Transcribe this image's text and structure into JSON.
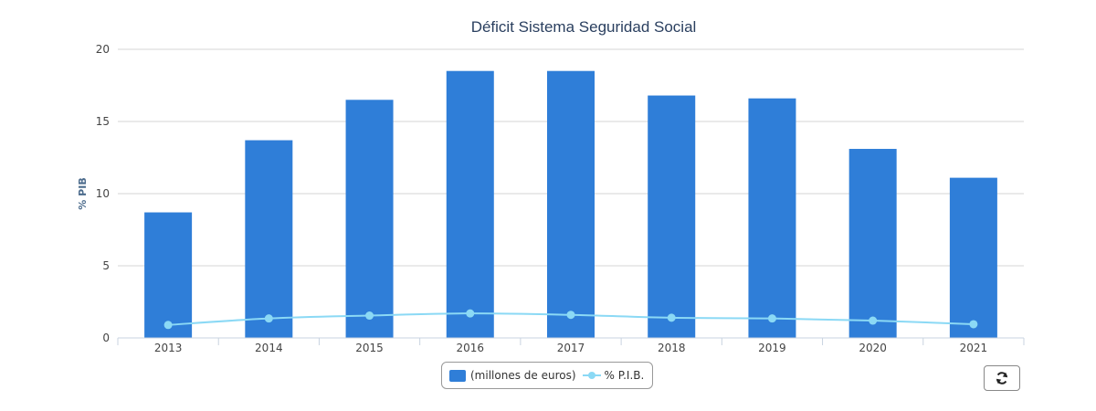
{
  "colors": {
    "bar": "#2f7ed8",
    "line": "#8bd9f5",
    "grid": "#d6d6d6",
    "axis": "#c8d3e0"
  },
  "legend": {
    "bar_label": "(millones de euros)",
    "line_label": "% P.I.B."
  },
  "refresh_button": {
    "icon": "refresh-icon"
  },
  "chart_data": {
    "type": "bar",
    "title": "Déficit Sistema Seguridad Social",
    "xlabel": "",
    "ylabel": "% PIB",
    "ylim": [
      0,
      20
    ],
    "yticks": [
      "0",
      "5",
      "10",
      "15",
      "20"
    ],
    "categories": [
      "2013",
      "2014",
      "2015",
      "2016",
      "2017",
      "2018",
      "2019",
      "2020",
      "2021"
    ],
    "grid": true,
    "legend_position": "bottom-center",
    "series": [
      {
        "name": "(millones de euros)",
        "type": "bar",
        "values": [
          8.7,
          13.7,
          16.5,
          18.5,
          18.5,
          16.8,
          16.6,
          13.1,
          11.1
        ]
      },
      {
        "name": "% P.I.B.",
        "type": "line",
        "values": [
          0.9,
          1.35,
          1.55,
          1.7,
          1.6,
          1.4,
          1.35,
          1.2,
          0.95
        ]
      }
    ]
  }
}
